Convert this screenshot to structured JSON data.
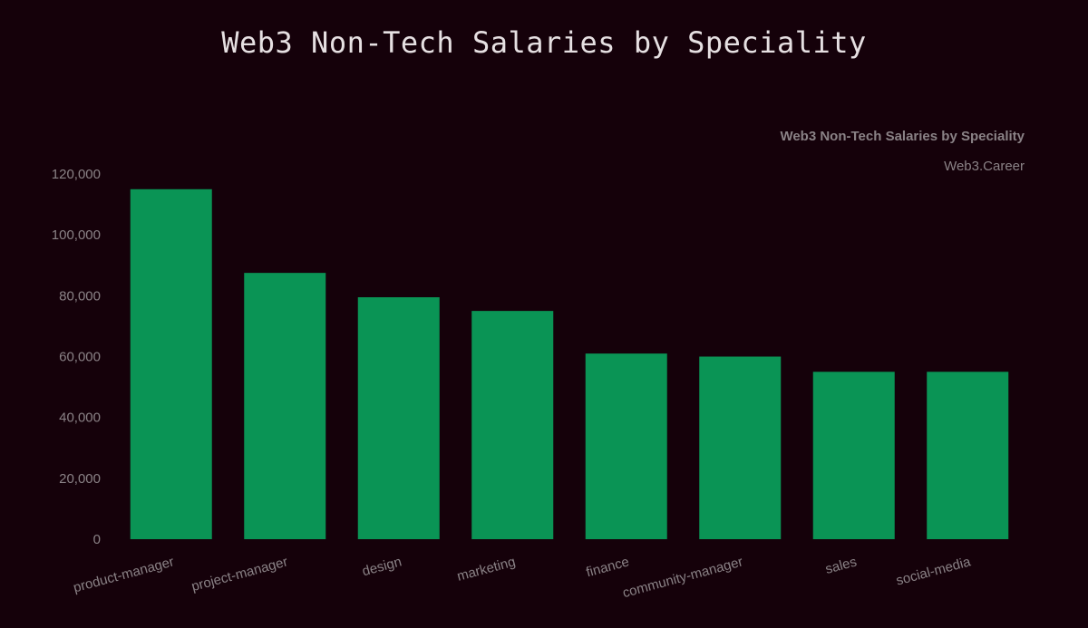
{
  "page_title": "Web3 Non-Tech Salaries by Speciality",
  "chart_data": {
    "type": "bar",
    "title": "Web3 Non-Tech Salaries by Speciality",
    "subtitle": "Web3.Career",
    "categories": [
      "product-manager",
      "project-manager",
      "design",
      "marketing",
      "finance",
      "community-manager",
      "sales",
      "social-media"
    ],
    "values": [
      115000,
      87500,
      79500,
      75000,
      61000,
      60000,
      55000,
      55000
    ],
    "ylim": [
      0,
      120000
    ],
    "yticks": [
      0,
      20000,
      40000,
      60000,
      80000,
      100000,
      120000
    ],
    "ytick_labels": [
      "0",
      "20,000",
      "40,000",
      "60,000",
      "80,000",
      "100,000",
      "120,000"
    ],
    "xlabel": "",
    "ylabel": "",
    "grid": false,
    "legend": "none",
    "bar_color": "#0a9455",
    "background_color": "#15010a"
  }
}
